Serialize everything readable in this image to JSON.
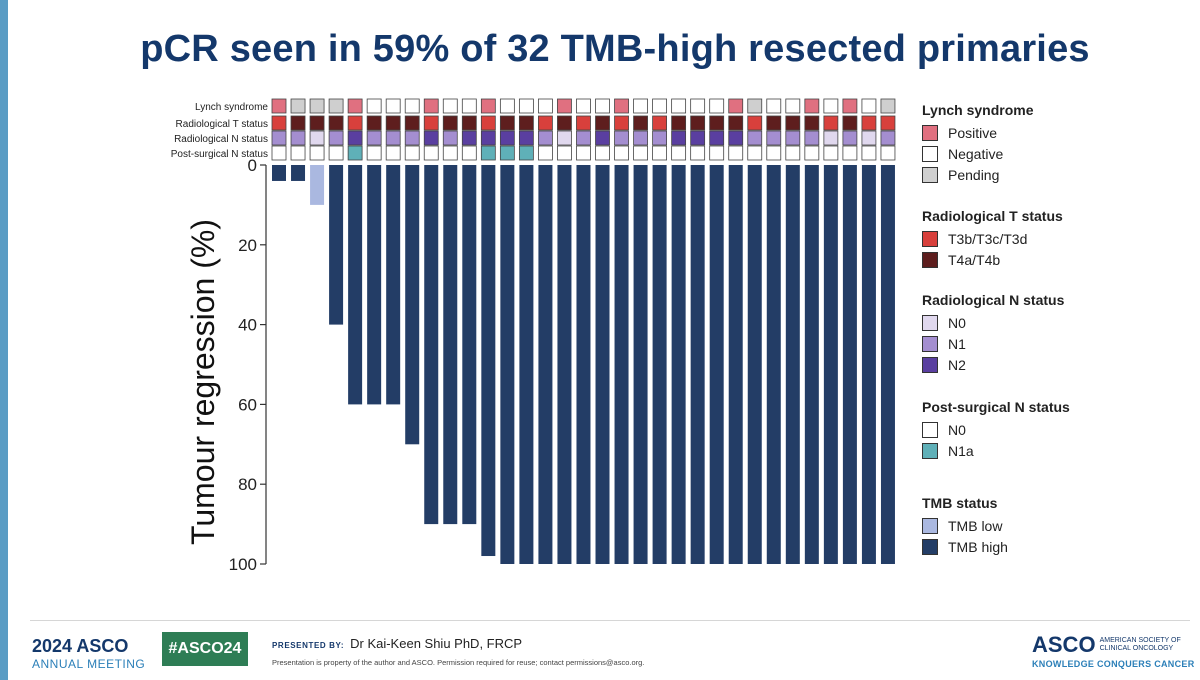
{
  "slide": {
    "title": "pCR seen in 59% of 32 TMB-high resected primaries",
    "accent_color": "#14386b"
  },
  "colors": {
    "lynch_positive": "#e07080",
    "negative": "#ffffff",
    "pending": "#cfcfcf",
    "t3": "#d8403c",
    "t4": "#5e1e1e",
    "n0": "#e0d8ee",
    "n1": "#a48ed0",
    "n2": "#5a3fa0",
    "ps_n0": "#ffffff",
    "ps_n1a": "#5fb0b8",
    "tmb_low": "#aab8e0",
    "tmb_high": "#233d66"
  },
  "chart_data": {
    "type": "bar",
    "title": "pCR seen in 59% of 32 TMB-high resected primaries",
    "ylabel": "Tumour regression (%)",
    "xlabel": "",
    "ylim": [
      0,
      100
    ],
    "y_inverted": true,
    "y_ticks": [
      0,
      20,
      40,
      60,
      80,
      100
    ],
    "values": [
      4,
      4,
      10,
      40,
      60,
      60,
      60,
      70,
      90,
      90,
      90,
      98,
      100,
      100,
      100,
      100,
      100,
      100,
      100,
      100,
      100,
      100,
      100,
      100,
      100,
      100,
      100,
      100,
      100,
      100,
      100,
      100,
      100
    ],
    "tmb": [
      "high",
      "high",
      "low",
      "high",
      "high",
      "high",
      "high",
      "high",
      "high",
      "high",
      "high",
      "high",
      "high",
      "high",
      "high",
      "high",
      "high",
      "high",
      "high",
      "high",
      "high",
      "high",
      "high",
      "high",
      "high",
      "high",
      "high",
      "high",
      "high",
      "high",
      "high",
      "high",
      "high"
    ],
    "tracks": [
      {
        "label": "Lynch syndrome",
        "values": [
          "P",
          "Pe",
          "Pe",
          "Pe",
          "P",
          "N",
          "N",
          "N",
          "P",
          "N",
          "N",
          "P",
          "N",
          "N",
          "N",
          "P",
          "N",
          "N",
          "P",
          "N",
          "N",
          "N",
          "N",
          "N",
          "P",
          "Pe",
          "N",
          "N",
          "P",
          "N",
          "P",
          "N",
          "Pe"
        ]
      },
      {
        "label": "Radiological T status",
        "values": [
          "T3",
          "T4",
          "T4",
          "T4",
          "T3",
          "T4",
          "T4",
          "T4",
          "T3",
          "T4",
          "T4",
          "T3",
          "T4",
          "T4",
          "T3",
          "T4",
          "T3",
          "T4",
          "T3",
          "T4",
          "T3",
          "T4",
          "T4",
          "T4",
          "T4",
          "T3",
          "T4",
          "T4",
          "T4",
          "T3",
          "T4",
          "T3",
          "T3"
        ]
      },
      {
        "label": "Radiological N status",
        "values": [
          "N1",
          "N1",
          "N0",
          "N1",
          "N2",
          "N1",
          "N1",
          "N1",
          "N2",
          "N1",
          "N2",
          "N2",
          "N2",
          "N2",
          "N1",
          "N0",
          "N1",
          "N2",
          "N1",
          "N1",
          "N1",
          "N2",
          "N2",
          "N2",
          "N2",
          "N1",
          "N1",
          "N1",
          "N1",
          "N0",
          "N1",
          "N0",
          "N1"
        ]
      },
      {
        "label": "Post-surgical N status",
        "values": [
          "N0",
          "N0",
          "N0",
          "N0",
          "N1a",
          "N0",
          "N0",
          "N0",
          "N0",
          "N0",
          "N0",
          "N1a",
          "N1a",
          "N1a",
          "N0",
          "N0",
          "N0",
          "N0",
          "N0",
          "N0",
          "N0",
          "N0",
          "N0",
          "N0",
          "N0",
          "N0",
          "N0",
          "N0",
          "N0",
          "N0",
          "N0",
          "N0",
          "N0"
        ]
      }
    ],
    "legend": [
      {
        "title": "Lynch syndrome",
        "items": [
          {
            "label": "Positive",
            "color": "#e07080"
          },
          {
            "label": "Negative",
            "color": "#ffffff"
          },
          {
            "label": "Pending",
            "color": "#cfcfcf"
          }
        ]
      },
      {
        "title": "Radiological T status",
        "items": [
          {
            "label": "T3b/T3c/T3d",
            "color": "#d8403c"
          },
          {
            "label": "T4a/T4b",
            "color": "#5e1e1e"
          }
        ]
      },
      {
        "title": "Radiological N status",
        "items": [
          {
            "label": "N0",
            "color": "#e0d8ee"
          },
          {
            "label": "N1",
            "color": "#a48ed0"
          },
          {
            "label": "N2",
            "color": "#5a3fa0"
          }
        ]
      },
      {
        "title": "Post-surgical N status",
        "items": [
          {
            "label": "N0",
            "color": "#ffffff"
          },
          {
            "label": "N1a",
            "color": "#5fb0b8"
          }
        ]
      },
      {
        "title": "TMB status",
        "items": [
          {
            "label": "TMB low",
            "color": "#aab8e0"
          },
          {
            "label": "TMB high",
            "color": "#233d66"
          }
        ]
      }
    ]
  },
  "footer": {
    "year_brand": "2024 ASCO",
    "meeting": "ANNUAL MEETING",
    "hashtag": "#ASCO24",
    "presented_label": "PRESENTED BY:",
    "presenter": "Dr Kai-Keen Shiu  PhD, FRCP",
    "copyright": "Presentation is property of the author and ASCO. Permission required for reuse; contact permissions@asco.org.",
    "logo_word": "ASCO",
    "society_line1": "AMERICAN SOCIETY OF",
    "society_line2": "CLINICAL ONCOLOGY",
    "tagline": "KNOWLEDGE CONQUERS CANCER"
  }
}
